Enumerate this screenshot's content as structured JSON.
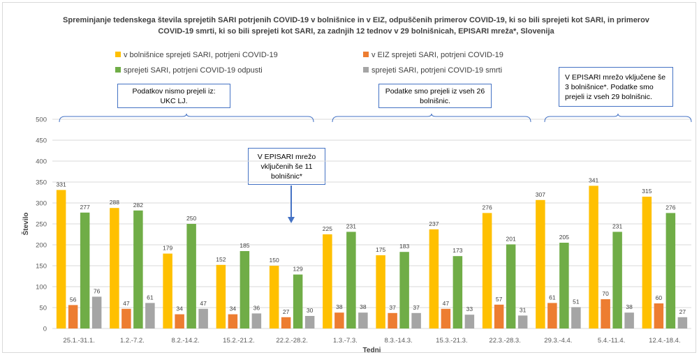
{
  "chart_data": {
    "type": "bar",
    "title": "Spreminjanje tedenskega števila sprejetih SARI potrjenih COVID-19 v bolnišnice in v EIZ, odpuščenih primerov COVID-19, ki so bili sprejeti kot SARI, in primerov COVID-19 smrti, ki so bili sprejeti kot SARI, za zadnjih 12 tednov  v 29 bolnišnicah, EPISARI mreža*, Slovenija",
    "xlabel": "Tedni",
    "ylabel": "Število",
    "ylim": [
      0,
      500
    ],
    "yticks": [
      0,
      50,
      100,
      150,
      200,
      250,
      300,
      350,
      400,
      450,
      500
    ],
    "grid": true,
    "legend_position": "top",
    "categories": [
      "25.1.-31.1.",
      "1.2.-7.2.",
      "8.2.-14.2.",
      "15.2.-21.2.",
      "22.2.-28.2.",
      "1.3.-7.3.",
      "8.3.-14.3.",
      "15.3.-21.3.",
      "22.3.-28.3.",
      "29.3.-4.4.",
      "5.4.-11.4.",
      "12.4.-18.4."
    ],
    "series": [
      {
        "name": "v bolnišnice sprejeti SARI, potrjeni COVID-19",
        "color": "#ffc000",
        "values": [
          331,
          288,
          179,
          152,
          150,
          225,
          175,
          237,
          276,
          307,
          341,
          315
        ]
      },
      {
        "name": "v EIZ sprejeti SARI, potrjeni COVID-19",
        "color": "#ed7d31",
        "values": [
          56,
          47,
          34,
          34,
          27,
          38,
          37,
          47,
          57,
          61,
          70,
          60
        ]
      },
      {
        "name": "sprejeti SARI, potrjeni COVID-19 odpusti",
        "color": "#70ad47",
        "values": [
          277,
          282,
          250,
          185,
          129,
          231,
          183,
          173,
          201,
          205,
          231,
          276
        ]
      },
      {
        "name": "sprejeti SARI, potrjeni COVID-19 smrti",
        "color": "#a5a5a5",
        "values": [
          76,
          61,
          47,
          36,
          30,
          38,
          37,
          33,
          31,
          51,
          38,
          27
        ]
      }
    ],
    "annotations": [
      {
        "text": "Podatkov nismo prejeli iz:\nUKC LJ."
      },
      {
        "text": "Podatke smo prejeli iz vseh 26\nbolnišnic."
      },
      {
        "text": "V EPISARI mrežo vključene še\n3 bolnišnice*. Podatke smo\nprejeli iz vseh 29 bolnišnic."
      },
      {
        "text": "V EPISARI mrežo\nvključenih še 11\nbolnišnic*"
      }
    ]
  },
  "colors": {
    "grid": "#d9d9d9",
    "axis_text": "#595959",
    "note_border": "#4472c4"
  }
}
